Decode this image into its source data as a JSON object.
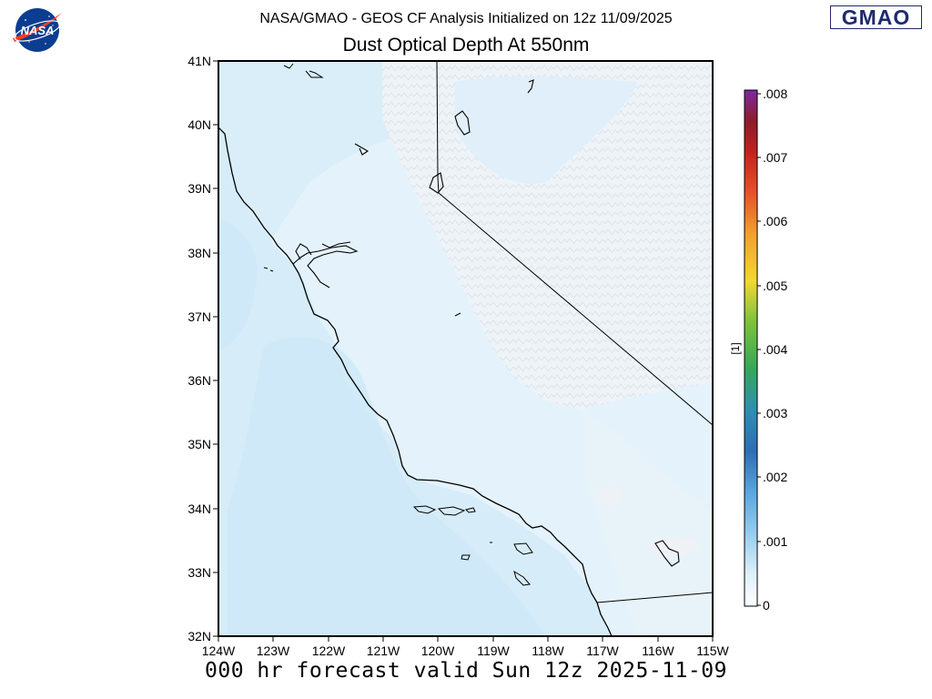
{
  "header": {
    "line1": "NASA/GMAO - GEOS CF Analysis Initialized on 12z 11/09/2025",
    "line2": "Dust Optical Depth At 550nm",
    "nasa_logo_text": "NASA",
    "gmao_logo_text": "GMAO"
  },
  "footer": {
    "valid_text": "000 hr forecast valid Sun 12z 2025-11-09"
  },
  "map": {
    "lat_labels": [
      "41N",
      "40N",
      "39N",
      "38N",
      "37N",
      "36N",
      "35N",
      "34N",
      "33N",
      "32N"
    ],
    "lon_labels": [
      "124W",
      "123W",
      "122W",
      "121W",
      "120W",
      "119W",
      "118W",
      "117W",
      "116W",
      "115W"
    ],
    "lat_range": [
      32,
      41
    ],
    "lon_range": [
      -124,
      -115
    ]
  },
  "colorbar": {
    "unit_label": "[1]",
    "tick_labels": [
      ".008",
      ".007",
      ".006",
      ".005",
      ".004",
      ".003",
      ".002",
      ".001",
      "0"
    ],
    "range": [
      0,
      0.008
    ]
  },
  "colors": {
    "ocean_field": "#d2ebf8",
    "land_field": "#e4f2fb",
    "nasa_blue": "#0b3d91",
    "nasa_red": "#fc3d21",
    "gmao_blue": "#1f2a6e"
  }
}
